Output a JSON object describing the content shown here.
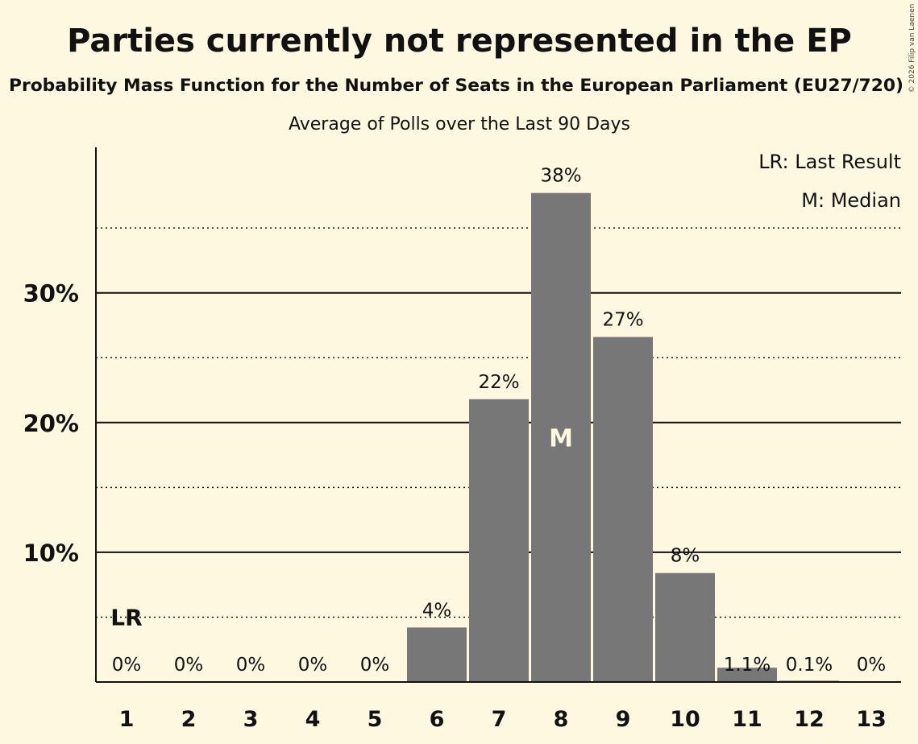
{
  "title": "Parties currently not represented in the EP",
  "subtitle": "Probability Mass Function for the Number of Seats in the European Parliament (EU27/720)",
  "subtitle2": "Average of Polls over the Last 90 Days",
  "copyright": "© 2026 Filip van Laenen",
  "legend": {
    "last_result": "LR: Last Result",
    "median": "M: Median"
  },
  "colors": {
    "background": "#fff8e1",
    "bar": "#777777",
    "text": "#111111"
  },
  "chart_data": {
    "type": "bar",
    "title": "Parties currently not represented in the EP",
    "xlabel": "",
    "ylabel": "",
    "categories": [
      "1",
      "2",
      "3",
      "4",
      "5",
      "6",
      "7",
      "8",
      "9",
      "10",
      "11",
      "12",
      "13"
    ],
    "values": [
      0,
      0,
      0,
      0,
      0,
      4.2,
      21.8,
      37.7,
      26.6,
      8.4,
      1.1,
      0.1,
      0
    ],
    "value_labels": [
      "0%",
      "0%",
      "0%",
      "0%",
      "0%",
      "4%",
      "22%",
      "38%",
      "27%",
      "8%",
      "1.1%",
      "0.1%",
      "0%"
    ],
    "ylim": [
      0,
      41
    ],
    "yticks": [
      10,
      20,
      30
    ],
    "ytick_labels": [
      "10%",
      "20%",
      "30%"
    ],
    "minor_gridlines": [
      5,
      15,
      25,
      35
    ],
    "median_category": "8",
    "median_marker": "M",
    "last_result_category": "1",
    "last_result_marker": "LR",
    "last_result_value": 5,
    "legend_position": "top-right"
  }
}
